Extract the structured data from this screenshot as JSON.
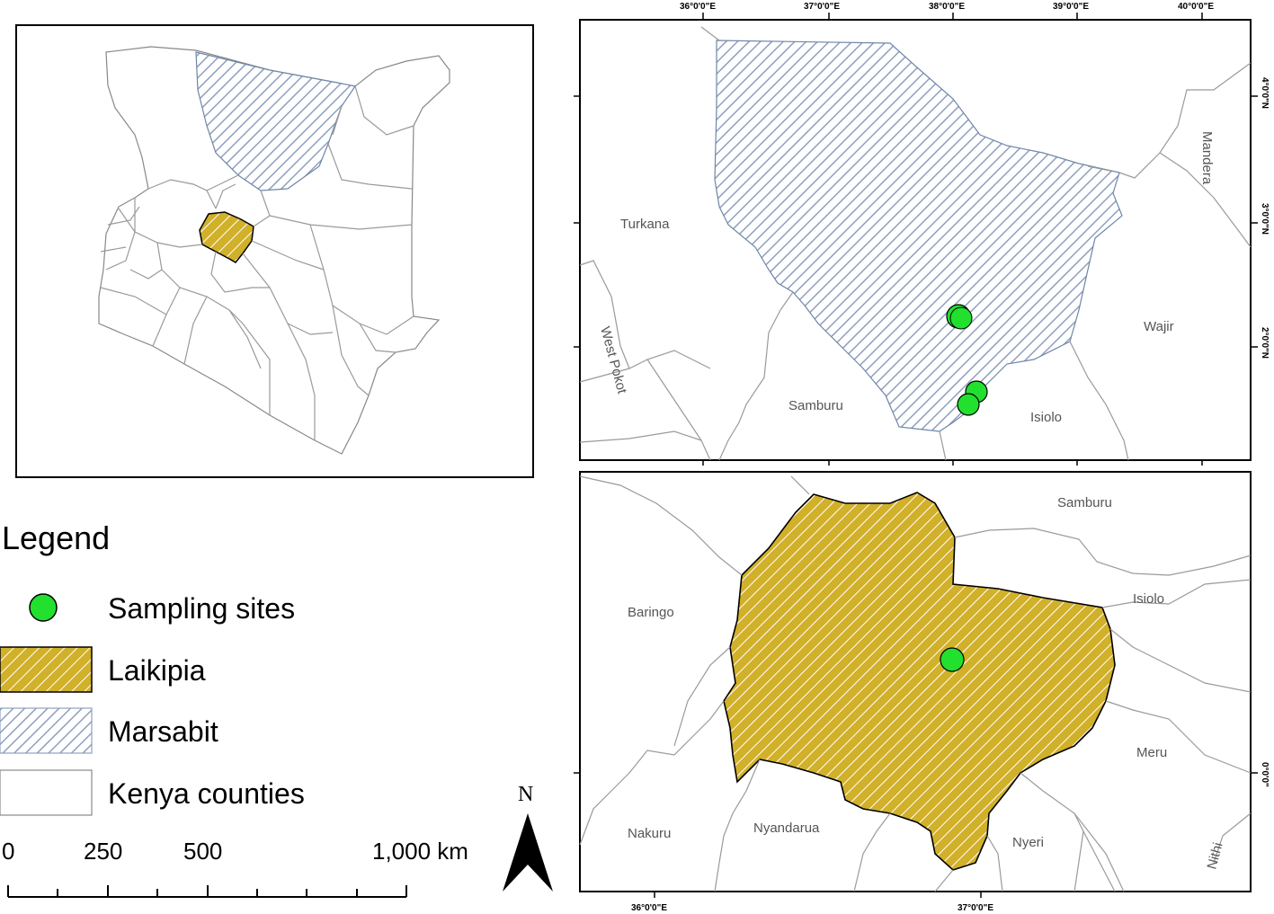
{
  "legend": {
    "title": "Legend",
    "items": [
      {
        "label": "Sampling sites",
        "symbol": "green-circle",
        "color": "#22e02e"
      },
      {
        "label": "Laikipia",
        "symbol": "yellow-hatch",
        "color": "#d4b32a"
      },
      {
        "label": "Marsabit",
        "symbol": "blue-hatch",
        "color": "#9aa8c4"
      },
      {
        "label": "Kenya counties",
        "symbol": "white-box",
        "color": "#ffffff"
      }
    ]
  },
  "scale_bar": {
    "labels": [
      "0",
      "250",
      "500",
      "1,000 km"
    ]
  },
  "north_arrow": {
    "label": "N"
  },
  "marsabit_map": {
    "top_ticks": [
      "36°0'0\"E",
      "37°0'0\"E",
      "38°0'0\"E",
      "39°0'0\"E",
      "40°0'0\"E"
    ],
    "right_ticks": [
      "4°0'0\"N",
      "3°0'0\"N",
      "2°0'0\"N"
    ],
    "labels": [
      "Turkana",
      "Mandera",
      "Wajir",
      "West Pokot",
      "Samburu",
      "Isiolo"
    ]
  },
  "laikipia_map": {
    "bottom_ticks": [
      "36°0'0\"E",
      "37°0'0\"E"
    ],
    "right_ticks": [
      "0°0'0\""
    ],
    "labels": [
      "Samburu",
      "Isiolo",
      "Baringo",
      "Meru",
      "Nakuru",
      "Nyandarua",
      "Nyeri",
      "Nithi"
    ]
  }
}
